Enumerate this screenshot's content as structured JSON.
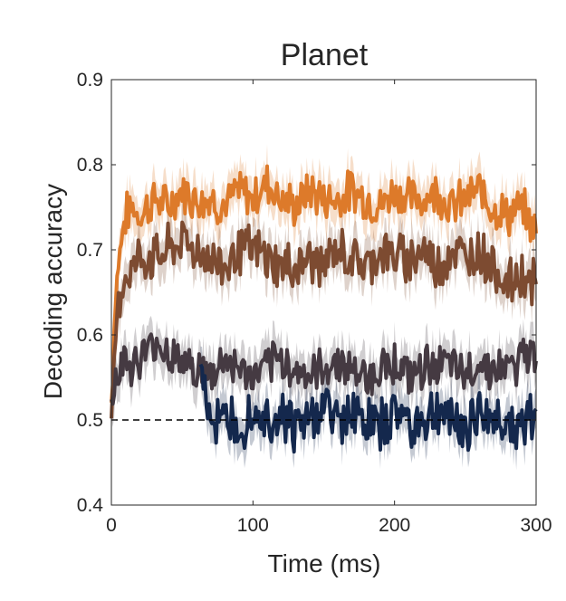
{
  "chart_data": {
    "type": "line",
    "title": "Planet",
    "xlabel": "Time (ms)",
    "ylabel": "Decoding accuracy",
    "xlim": [
      0,
      300
    ],
    "ylim": [
      0.4,
      0.9
    ],
    "xticks": [
      0,
      100,
      200,
      300
    ],
    "xtick_labels": [
      "0",
      "100",
      "200",
      "300"
    ],
    "yticks": [
      0.4,
      0.5,
      0.6,
      0.7,
      0.8,
      0.9
    ],
    "ytick_labels": [
      "0.4",
      "0.5",
      "0.6",
      "0.7",
      "0.8",
      "0.9"
    ],
    "grid": false,
    "legend": "none",
    "chance_level": 0.5,
    "series": [
      {
        "color": "#dd7a2a",
        "x": [
          0,
          3,
          6,
          10,
          15,
          20,
          30,
          40,
          50,
          60,
          70,
          80,
          90,
          100,
          110,
          120,
          130,
          140,
          150,
          160,
          170,
          180,
          190,
          200,
          210,
          220,
          230,
          240,
          250,
          260,
          270,
          280,
          290,
          300
        ],
        "y": [
          0.52,
          0.65,
          0.7,
          0.74,
          0.75,
          0.74,
          0.76,
          0.75,
          0.77,
          0.76,
          0.76,
          0.75,
          0.77,
          0.76,
          0.78,
          0.76,
          0.75,
          0.77,
          0.76,
          0.76,
          0.77,
          0.76,
          0.75,
          0.77,
          0.76,
          0.76,
          0.77,
          0.75,
          0.76,
          0.77,
          0.75,
          0.74,
          0.75,
          0.72
        ]
      },
      {
        "color": "#7d4b31",
        "x": [
          0,
          3,
          6,
          10,
          15,
          20,
          30,
          40,
          50,
          60,
          70,
          80,
          90,
          100,
          110,
          120,
          130,
          140,
          150,
          160,
          170,
          180,
          190,
          200,
          210,
          220,
          230,
          240,
          250,
          260,
          270,
          280,
          290,
          300
        ],
        "y": [
          0.48,
          0.6,
          0.65,
          0.67,
          0.68,
          0.69,
          0.69,
          0.7,
          0.71,
          0.7,
          0.69,
          0.68,
          0.7,
          0.7,
          0.69,
          0.68,
          0.68,
          0.69,
          0.68,
          0.7,
          0.69,
          0.68,
          0.7,
          0.69,
          0.69,
          0.7,
          0.68,
          0.7,
          0.69,
          0.7,
          0.68,
          0.66,
          0.67,
          0.66
        ]
      },
      {
        "color": "#453a42",
        "x": [
          0,
          3,
          6,
          10,
          15,
          20,
          30,
          40,
          50,
          60,
          70,
          80,
          90,
          100,
          110,
          120,
          130,
          140,
          150,
          160,
          170,
          180,
          190,
          200,
          210,
          220,
          230,
          240,
          250,
          260,
          270,
          280,
          290,
          300
        ],
        "y": [
          0.53,
          0.55,
          0.57,
          0.57,
          0.56,
          0.57,
          0.59,
          0.58,
          0.57,
          0.56,
          0.55,
          0.57,
          0.56,
          0.55,
          0.56,
          0.57,
          0.56,
          0.55,
          0.56,
          0.57,
          0.56,
          0.55,
          0.56,
          0.57,
          0.55,
          0.56,
          0.57,
          0.56,
          0.55,
          0.57,
          0.56,
          0.56,
          0.57,
          0.58
        ]
      },
      {
        "color": "#14284d",
        "x": [
          63,
          68,
          72,
          78,
          85,
          90,
          95,
          100,
          110,
          120,
          130,
          140,
          150,
          160,
          170,
          180,
          190,
          200,
          210,
          220,
          230,
          240,
          250,
          260,
          270,
          280,
          290,
          300
        ],
        "y": [
          0.58,
          0.52,
          0.5,
          0.49,
          0.51,
          0.5,
          0.5,
          0.52,
          0.5,
          0.51,
          0.49,
          0.5,
          0.52,
          0.5,
          0.51,
          0.5,
          0.49,
          0.51,
          0.5,
          0.5,
          0.51,
          0.5,
          0.49,
          0.51,
          0.5,
          0.5,
          0.49,
          0.5
        ]
      }
    ]
  }
}
